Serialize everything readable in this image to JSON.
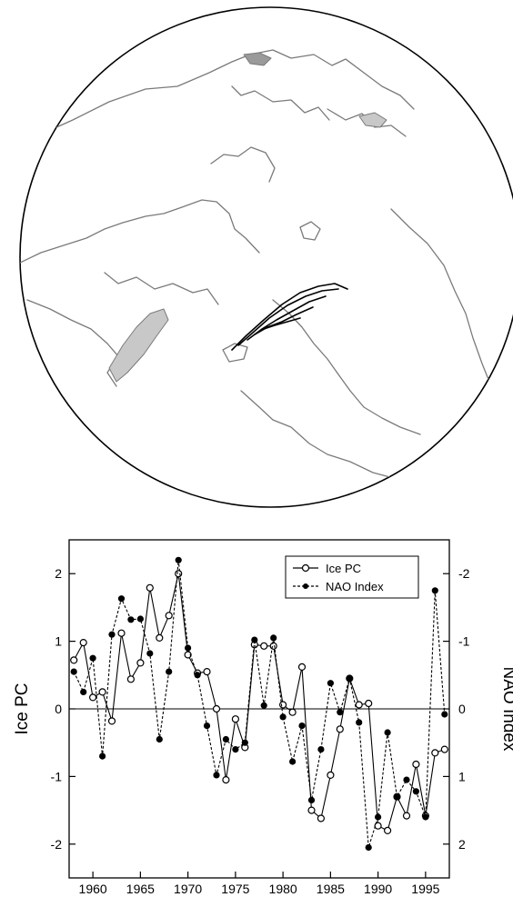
{
  "map": {
    "shading": [
      "#c8c8c8",
      "#9a9a9a"
    ],
    "coast_color": "#7a7a7a",
    "contour_color": "#000000"
  },
  "chart_data": {
    "type": "line",
    "title": "",
    "xlabel": "",
    "ylabel": "Ice PC",
    "ylabel_right": "NAO Index",
    "xlim": [
      1957.5,
      1997.5
    ],
    "ylim": [
      -2.5,
      2.5
    ],
    "ylim_right": [
      2.5,
      -2.5
    ],
    "right_axis_inverted": true,
    "x_ticks": [
      "1960",
      "1965",
      "1970",
      "1975",
      "1980",
      "1985",
      "1990",
      "1995"
    ],
    "y_ticks": [
      "-2",
      "-1",
      "0",
      "1",
      "2"
    ],
    "y_ticks_right": [
      "-2",
      "-1",
      "0",
      "1",
      "2"
    ],
    "grid": false,
    "zero_line": true,
    "legend_position": "top-right",
    "x": [
      1958,
      1959,
      1960,
      1961,
      1962,
      1963,
      1964,
      1965,
      1966,
      1967,
      1968,
      1969,
      1970,
      1971,
      1972,
      1973,
      1974,
      1975,
      1976,
      1977,
      1978,
      1979,
      1980,
      1981,
      1982,
      1983,
      1984,
      1985,
      1986,
      1987,
      1988,
      1989,
      1990,
      1991,
      1992,
      1993,
      1994,
      1995,
      1996,
      1997
    ],
    "series": [
      {
        "name": "Ice PC",
        "style": "solid line, open circles",
        "axis": "left",
        "values": [
          0.72,
          0.98,
          0.17,
          0.25,
          -0.18,
          1.12,
          0.44,
          0.68,
          1.79,
          1.05,
          1.38,
          2.0,
          0.8,
          0.53,
          0.55,
          0.0,
          -1.05,
          -0.15,
          -0.57,
          0.95,
          0.93,
          0.93,
          0.06,
          -0.05,
          0.62,
          -1.5,
          -1.62,
          -0.98,
          -0.3,
          0.45,
          0.06,
          0.08,
          -1.73,
          -1.8,
          -1.3,
          -1.58,
          -0.82,
          -1.58,
          -0.65,
          -0.6
        ]
      },
      {
        "name": "NAO Index",
        "style": "dashed line, filled dots",
        "axis": "right (inverted)",
        "values": [
          -0.55,
          -0.25,
          -0.75,
          0.7,
          -1.1,
          -1.63,
          -1.32,
          -1.33,
          -0.82,
          0.45,
          -0.55,
          -2.2,
          -0.9,
          -0.5,
          0.25,
          0.98,
          0.45,
          0.6,
          0.5,
          -1.02,
          -0.05,
          -1.05,
          0.12,
          0.78,
          0.25,
          1.35,
          0.6,
          -0.38,
          0.05,
          -0.45,
          0.2,
          2.05,
          1.6,
          0.35,
          1.3,
          1.05,
          1.22,
          1.6,
          -1.75,
          0.08
        ]
      }
    ]
  }
}
